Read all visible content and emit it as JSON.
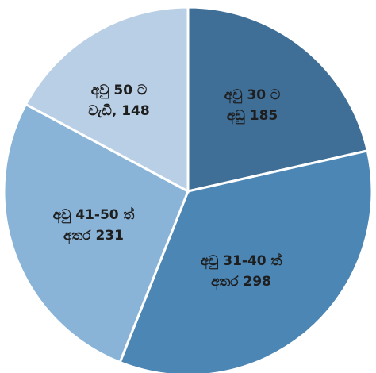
{
  "chart_data": {
    "type": "pie",
    "slices": [
      {
        "label_line1": "අවු 30 ට",
        "label_line2": "අඩු 185",
        "value": 185,
        "color": "#3f6e96"
      },
      {
        "label_line1": "අවු 31-40 ත්",
        "label_line2": "අතර 298",
        "value": 298,
        "color": "#4b86b5"
      },
      {
        "label_line1": "අවු 41-50 ත්",
        "label_line2": "අතර 231",
        "value": 231,
        "color": "#89b4d8"
      },
      {
        "label_line1": "අවු 50 ට",
        "label_line2": "වැඩි, 148",
        "value": 148,
        "color": "#b9cfe5"
      }
    ],
    "start_angle_deg": 0,
    "direction": "clockwise",
    "legend": "none"
  }
}
